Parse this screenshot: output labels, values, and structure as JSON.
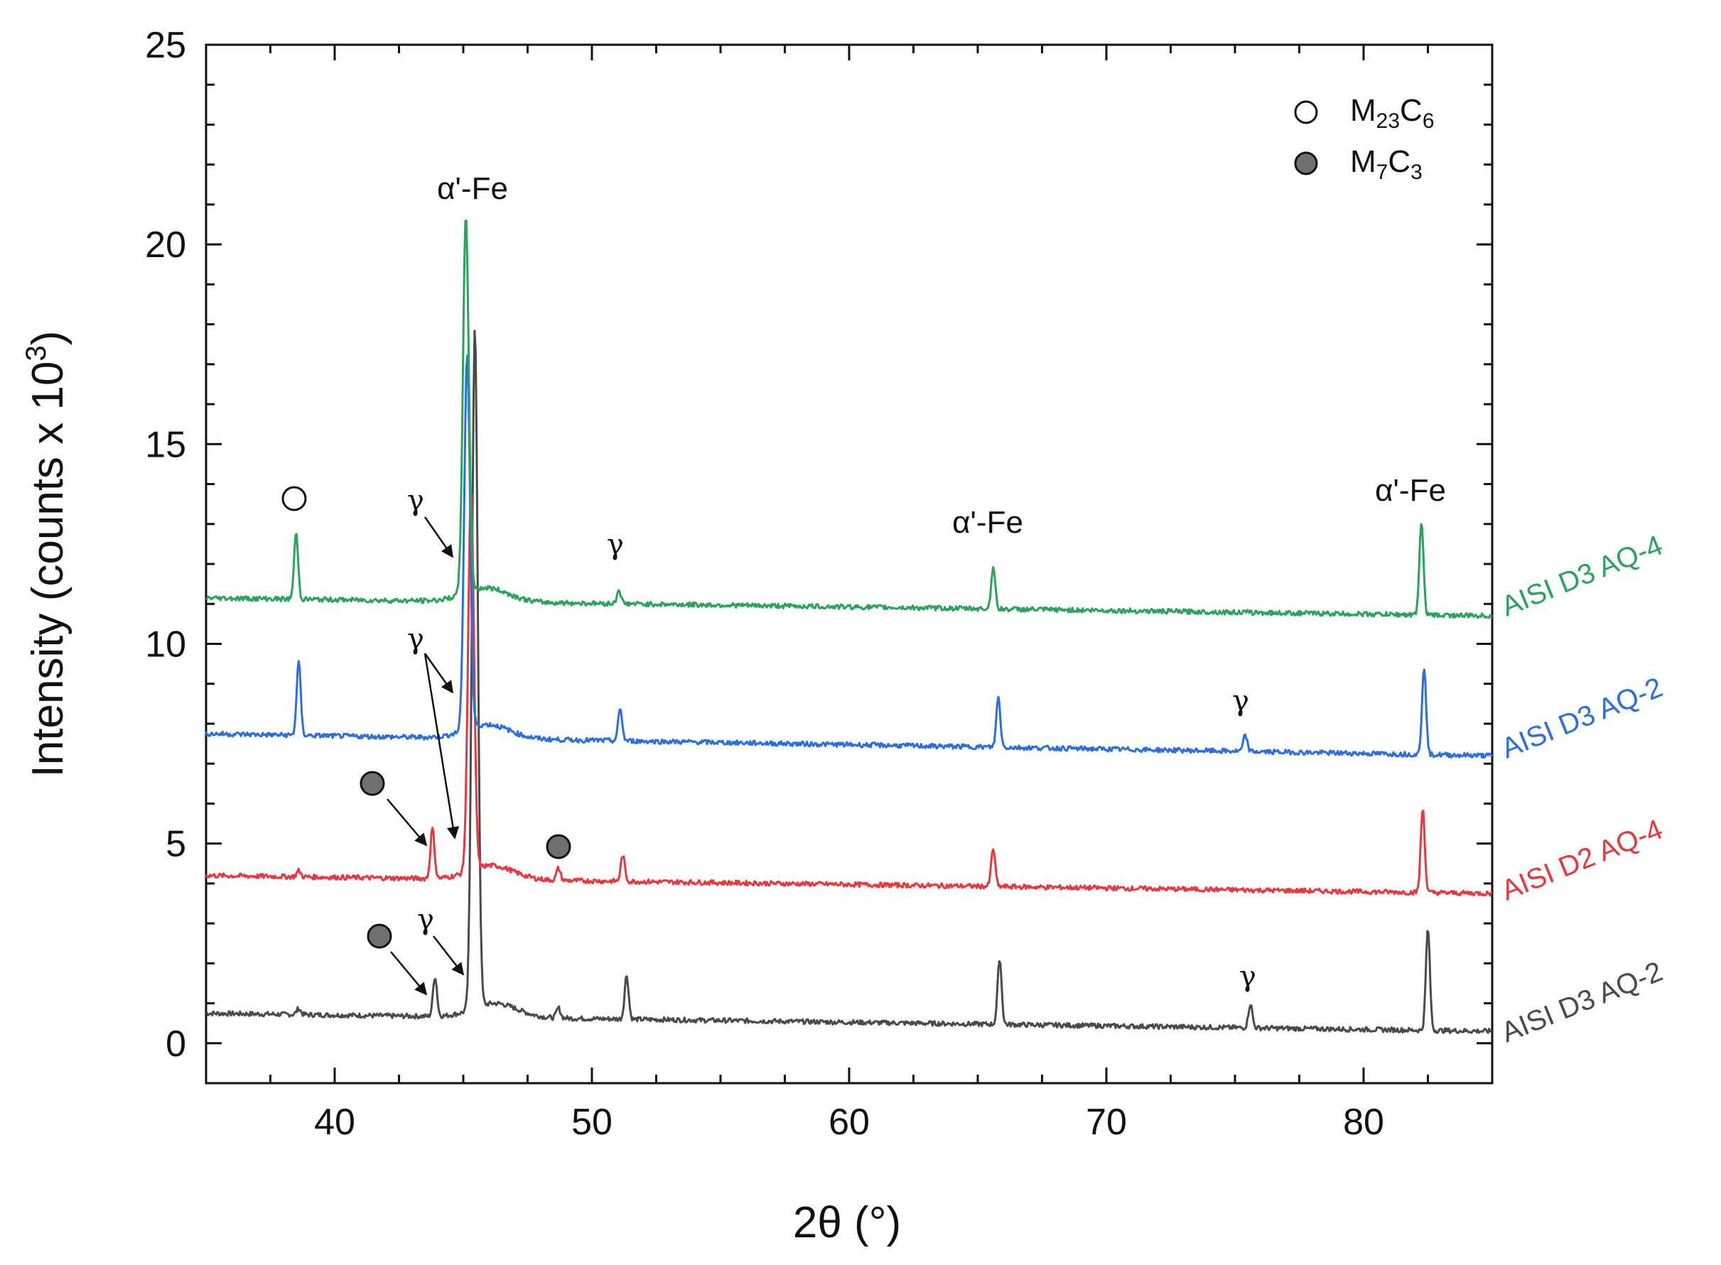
{
  "chart_data": {
    "type": "line",
    "title": "",
    "xlabel": "2θ (°)",
    "ylabel_main": "Intensity (counts x 10",
    "ylabel_sup": "3",
    "ylabel_close": ")",
    "xlim": [
      35,
      85
    ],
    "ylim": [
      -1,
      25
    ],
    "x_ticks": [
      40,
      50,
      60,
      70,
      80
    ],
    "y_ticks": [
      0,
      5,
      10,
      15,
      20,
      25
    ],
    "grid": false,
    "series": [
      {
        "name": "AISI D3 AQ-2",
        "color": "#4a4a4a",
        "baseline_start": 0.75,
        "baseline_end": 0.3,
        "peaks": [
          [
            38.6,
            0.15
          ],
          [
            43.9,
            1.0
          ],
          [
            45.45,
            17.0
          ],
          [
            48.7,
            0.25
          ],
          [
            51.35,
            1.1
          ],
          [
            65.85,
            1.65
          ],
          [
            75.6,
            0.6
          ],
          [
            82.5,
            2.55
          ]
        ]
      },
      {
        "name": "AISI D2 AQ-4",
        "color": "#e8383d",
        "baseline_start": 4.2,
        "baseline_end": 3.75,
        "peaks": [
          [
            38.6,
            0.15
          ],
          [
            43.8,
            1.25
          ],
          [
            45.3,
            9.5
          ],
          [
            48.7,
            0.3
          ],
          [
            51.2,
            0.65
          ],
          [
            65.6,
            0.95
          ],
          [
            82.3,
            2.1
          ]
        ]
      },
      {
        "name": "AISI D3 AQ-2",
        "color": "#2a6ee0",
        "baseline_start": 7.75,
        "baseline_end": 7.2,
        "peaks": [
          [
            38.6,
            1.85
          ],
          [
            45.15,
            9.4
          ],
          [
            51.1,
            0.8
          ],
          [
            65.8,
            1.25
          ],
          [
            75.4,
            0.4
          ],
          [
            82.35,
            2.2
          ]
        ]
      },
      {
        "name": "AISI D3 AQ-4",
        "color": "#2aa35c",
        "baseline_start": 11.15,
        "baseline_end": 10.7,
        "peaks": [
          [
            38.5,
            1.65
          ],
          [
            45.1,
            9.4
          ],
          [
            51.05,
            0.35
          ],
          [
            65.6,
            1.05
          ],
          [
            82.25,
            2.35
          ]
        ]
      }
    ],
    "legend": {
      "position": "top-right",
      "entries": [
        {
          "symbol": "open-circle",
          "main": "M",
          "sub1": "23",
          "mid": "C",
          "sub2": "6"
        },
        {
          "symbol": "filled-circle",
          "main": "M",
          "sub1": "7",
          "mid": "C",
          "sub2": "3"
        }
      ]
    },
    "annotations": {
      "alpha_fe": "α'-Fe",
      "gamma": "γ"
    }
  },
  "colors": {
    "axis": "#111111",
    "carbide_fill": "#707070"
  }
}
